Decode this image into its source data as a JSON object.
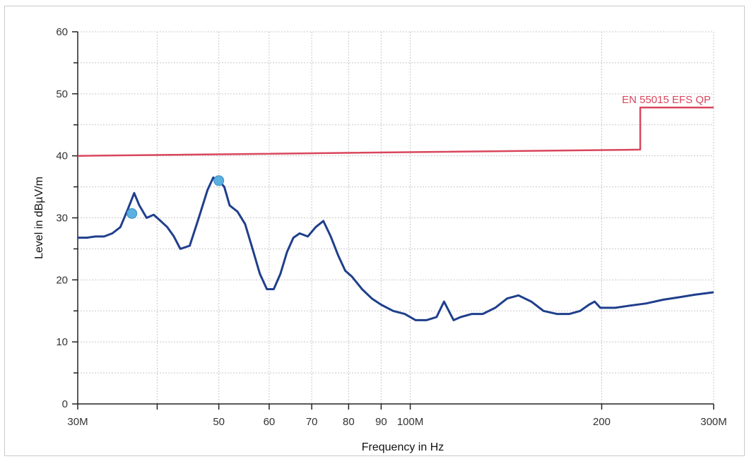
{
  "chart_data": {
    "type": "line",
    "xlabel": "Frequency in Hz",
    "ylabel": "Level in dBµV/m",
    "xscale": "log",
    "xlim": [
      30000000,
      300000000
    ],
    "ylim": [
      0,
      60
    ],
    "grid": true,
    "x_ticks": [
      {
        "value": 30000000,
        "label": "30M"
      },
      {
        "value": 40000000,
        "label": ""
      },
      {
        "value": 50000000,
        "label": "50"
      },
      {
        "value": 60000000,
        "label": "60"
      },
      {
        "value": 70000000,
        "label": "70"
      },
      {
        "value": 80000000,
        "label": "80"
      },
      {
        "value": 90000000,
        "label": "90"
      },
      {
        "value": 100000000,
        "label": "100M"
      },
      {
        "value": 200000000,
        "label": "200"
      },
      {
        "value": 300000000,
        "label": "300M"
      }
    ],
    "y_ticks": [
      {
        "value": 0,
        "label": "0"
      },
      {
        "value": 10,
        "label": "10"
      },
      {
        "value": 20,
        "label": "20"
      },
      {
        "value": 30,
        "label": "30"
      },
      {
        "value": 40,
        "label": "40"
      },
      {
        "value": 50,
        "label": "50"
      },
      {
        "value": 60,
        "label": "60"
      }
    ],
    "series": [
      {
        "color": "#1f3f8c",
        "x": [
          30000000,
          31000000,
          32000000,
          33000000,
          34000000,
          35000000,
          36000000,
          36800000,
          37500000,
          38500000,
          39500000,
          40500000,
          41500000,
          42500000,
          43500000,
          45000000,
          46500000,
          48000000,
          49000000,
          50000000,
          51000000,
          52000000,
          53500000,
          55000000,
          56500000,
          58000000,
          59500000,
          61000000,
          62500000,
          64000000,
          65500000,
          67000000,
          69000000,
          71000000,
          73000000,
          75000000,
          77000000,
          79000000,
          81000000,
          84000000,
          87000000,
          90000000,
          94000000,
          98000000,
          102000000,
          106000000,
          110000000,
          113000000,
          115000000,
          117000000,
          120000000,
          125000000,
          130000000,
          136000000,
          142000000,
          148000000,
          155000000,
          162000000,
          170000000,
          178000000,
          185000000,
          191000000,
          195000000,
          199000000,
          203000000,
          210000000,
          220000000,
          235000000,
          250000000,
          265000000,
          280000000,
          300000000
        ],
        "y": [
          26.8,
          26.8,
          27.0,
          27.0,
          27.5,
          28.5,
          31.5,
          34.0,
          32.0,
          30.0,
          30.5,
          29.5,
          28.5,
          27.0,
          25.0,
          25.5,
          30.0,
          34.5,
          36.5,
          36.0,
          35.0,
          32.0,
          31.0,
          29.0,
          25.0,
          21.0,
          18.5,
          18.5,
          21.0,
          24.5,
          26.8,
          27.5,
          27.0,
          28.5,
          29.5,
          27.0,
          24.0,
          21.5,
          20.5,
          18.5,
          17.0,
          16.0,
          15.0,
          14.5,
          13.5,
          13.5,
          14.0,
          16.5,
          15.0,
          13.5,
          14.0,
          14.5,
          14.5,
          15.5,
          17.0,
          17.5,
          16.5,
          15.0,
          14.5,
          14.5,
          15.0,
          16.0,
          16.5,
          15.5,
          15.5,
          15.5,
          15.8,
          16.2,
          16.8,
          17.2,
          17.6,
          18.0
        ]
      },
      {
        "name": "EN 55015 EFS QP",
        "color": "#d9465c",
        "x": [
          30000000,
          230000000,
          230000000,
          300000000
        ],
        "y": [
          40.0,
          41.0,
          47.8,
          47.8
        ]
      }
    ],
    "markers": [
      {
        "x": 36500000,
        "y": 30.7,
        "color": "#5ab0e0"
      },
      {
        "x": 50000000,
        "y": 36.0,
        "color": "#5ab0e0"
      }
    ],
    "annotations": [
      {
        "text": "EN 55015 EFS QP",
        "x": 300000000,
        "y": 48.3,
        "color": "#d9465c"
      }
    ]
  }
}
